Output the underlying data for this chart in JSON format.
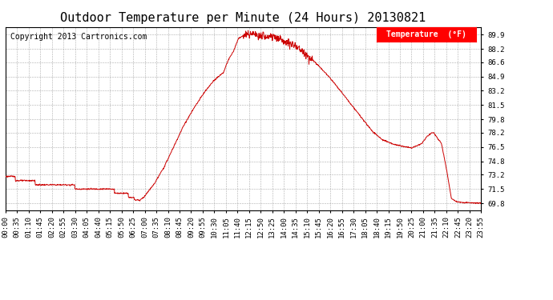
{
  "title": "Outdoor Temperature per Minute (24 Hours) 20130821",
  "copyright": "Copyright 2013 Cartronics.com",
  "legend_label": "Temperature  (°F)",
  "line_color": "#cc0000",
  "background_color": "#ffffff",
  "grid_color": "#999999",
  "yticks": [
    69.8,
    71.5,
    73.2,
    74.8,
    76.5,
    78.2,
    79.8,
    81.5,
    83.2,
    84.9,
    86.6,
    88.2,
    89.9
  ],
  "ylim": [
    69.0,
    90.8
  ],
  "xtick_labels": [
    "00:00",
    "00:35",
    "01:10",
    "01:45",
    "02:20",
    "02:55",
    "03:30",
    "04:05",
    "04:40",
    "05:15",
    "05:50",
    "06:25",
    "07:00",
    "07:35",
    "08:10",
    "08:45",
    "09:20",
    "09:55",
    "10:30",
    "11:05",
    "11:40",
    "12:15",
    "12:50",
    "13:25",
    "14:00",
    "14:35",
    "15:10",
    "15:45",
    "16:20",
    "16:55",
    "17:30",
    "18:05",
    "18:40",
    "19:15",
    "19:50",
    "20:25",
    "21:00",
    "21:35",
    "22:10",
    "22:45",
    "23:20",
    "23:55"
  ],
  "title_fontsize": 11,
  "tick_fontsize": 6.5,
  "copyright_fontsize": 7
}
